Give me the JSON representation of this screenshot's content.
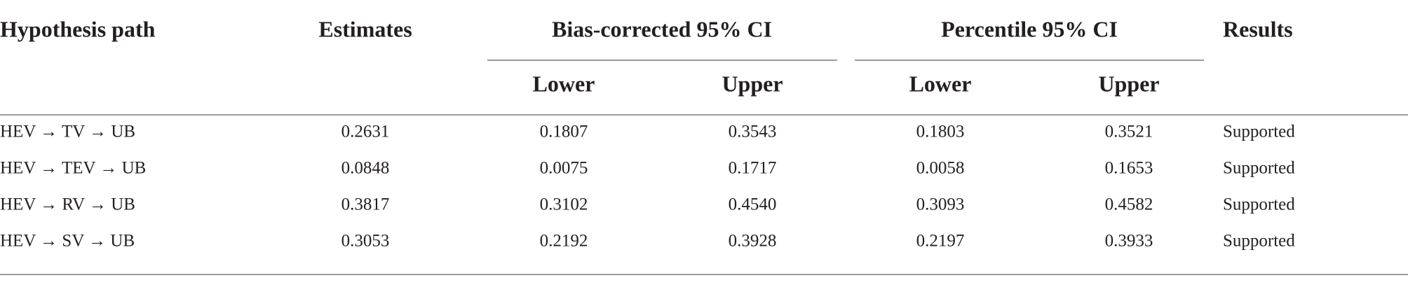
{
  "table": {
    "header": {
      "hypothesis": "Hypothesis path",
      "estimates": "Estimates",
      "bias_corrected": "Bias-corrected 95% CI",
      "percentile": "Percentile 95% CI",
      "results": "Results",
      "sub": [
        "Lower",
        "Upper",
        "Lower",
        "Upper"
      ]
    },
    "rows": [
      [
        "HEV → TV → UB",
        "0.2631",
        "0.1807",
        "0.3543",
        "0.1803",
        "0.3521",
        "Supported"
      ],
      [
        "HEV → TEV → UB",
        "0.0848",
        "0.0075",
        "0.1717",
        "0.0058",
        "0.1653",
        "Supported"
      ],
      [
        "HEV → RV → UB",
        "0.3817",
        "0.3102",
        "0.4540",
        "0.3093",
        "0.4582",
        "Supported"
      ],
      [
        "HEV → SV → UB",
        "0.3053",
        "0.2192",
        "0.3928",
        "0.2197",
        "0.3933",
        "Supported"
      ]
    ]
  }
}
